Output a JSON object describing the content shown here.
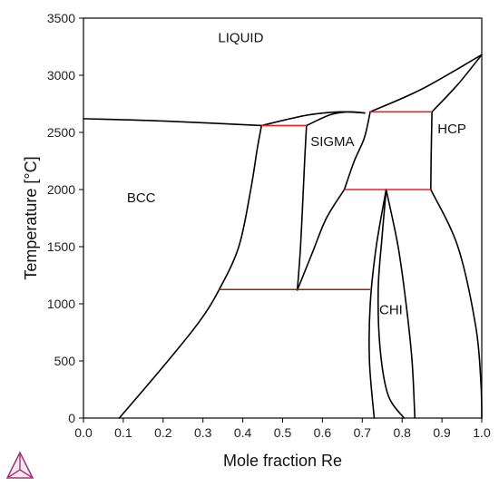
{
  "chart_data": {
    "type": "line",
    "title": "",
    "xlabel": "Mole fraction Re",
    "ylabel": "Temperature [°C]",
    "xlim": [
      0.0,
      1.0
    ],
    "ylim": [
      0,
      3500
    ],
    "xticks": [
      0.0,
      0.1,
      0.2,
      0.3,
      0.4,
      0.5,
      0.6,
      0.7,
      0.8,
      0.9,
      1.0
    ],
    "xtick_labels": [
      "0.0",
      "0.1",
      "0.2",
      "0.3",
      "0.4",
      "0.5",
      "0.6",
      "0.7",
      "0.8",
      "0.9",
      "1.0"
    ],
    "yticks": [
      0,
      500,
      1000,
      1500,
      2000,
      2500,
      3000,
      3500
    ],
    "ytick_labels": [
      "0",
      "500",
      "1000",
      "1500",
      "2000",
      "2500",
      "3000",
      "3500"
    ],
    "grid": false,
    "phase_labels": [
      {
        "text": "LIQUID",
        "x": 0.395,
        "y": 3330
      },
      {
        "text": "BCC",
        "x": 0.145,
        "y": 1930
      },
      {
        "text": "SIGMA",
        "x": 0.625,
        "y": 2420
      },
      {
        "text": "HCP",
        "x": 0.925,
        "y": 2530
      },
      {
        "text": "CHI",
        "x": 0.772,
        "y": 950
      }
    ],
    "boundaries": [
      {
        "name": "liquidus-left",
        "points": [
          [
            0.0,
            2620
          ],
          [
            0.2,
            2600
          ],
          [
            0.447,
            2560
          ]
        ]
      },
      {
        "name": "sigma-liquidus",
        "points": [
          [
            0.447,
            2560
          ],
          [
            0.56,
            2650
          ],
          [
            0.645,
            2680
          ],
          [
            0.706,
            2670
          ]
        ]
      },
      {
        "name": "sigma-left-top",
        "points": [
          [
            0.56,
            2560
          ],
          [
            0.62,
            2655
          ],
          [
            0.665,
            2680
          ],
          [
            0.706,
            2670
          ]
        ]
      },
      {
        "name": "liquidus-right",
        "points": [
          [
            0.72,
            2680
          ],
          [
            0.85,
            2880
          ],
          [
            1.0,
            3180
          ]
        ]
      },
      {
        "name": "hcp-solidus",
        "points": [
          [
            0.875,
            2680
          ],
          [
            0.94,
            2920
          ],
          [
            1.0,
            3180
          ]
        ]
      },
      {
        "name": "bcc-solvus",
        "points": [
          [
            0.09,
            0
          ],
          [
            0.2,
            450
          ],
          [
            0.29,
            840
          ],
          [
            0.34,
            1120
          ],
          [
            0.39,
            1500
          ],
          [
            0.42,
            2000
          ],
          [
            0.436,
            2350
          ],
          [
            0.447,
            2560
          ]
        ]
      },
      {
        "name": "sigma-bcc-boundary",
        "points": [
          [
            0.537,
            1120
          ],
          [
            0.545,
            1500
          ],
          [
            0.552,
            2000
          ],
          [
            0.556,
            2300
          ],
          [
            0.56,
            2560
          ]
        ]
      },
      {
        "name": "sigma-right-lower",
        "points": [
          [
            0.537,
            1120
          ],
          [
            0.575,
            1450
          ],
          [
            0.61,
            1750
          ],
          [
            0.655,
            2000
          ]
        ]
      },
      {
        "name": "sigma-hcp-boundary",
        "points": [
          [
            0.655,
            2000
          ],
          [
            0.68,
            2250
          ],
          [
            0.705,
            2450
          ],
          [
            0.72,
            2680
          ]
        ]
      },
      {
        "name": "hcp-left",
        "points": [
          [
            0.872,
            2000
          ],
          [
            0.873,
            2300
          ],
          [
            0.875,
            2680
          ]
        ]
      },
      {
        "name": "chi-left",
        "points": [
          [
            0.76,
            2000
          ],
          [
            0.735,
            1500
          ],
          [
            0.72,
            1000
          ],
          [
            0.718,
            500
          ],
          [
            0.73,
            0
          ]
        ]
      },
      {
        "name": "chi-right",
        "points": [
          [
            0.76,
            2000
          ],
          [
            0.79,
            1500
          ],
          [
            0.81,
            1000
          ],
          [
            0.825,
            500
          ],
          [
            0.832,
            0
          ]
        ]
      },
      {
        "name": "chi-inner",
        "points": [
          [
            0.76,
            2000
          ],
          [
            0.75,
            1600
          ],
          [
            0.74,
            1125
          ],
          [
            0.745,
            600
          ],
          [
            0.765,
            200
          ],
          [
            0.805,
            0
          ]
        ]
      },
      {
        "name": "hcp-solvus",
        "points": [
          [
            0.872,
            2000
          ],
          [
            0.94,
            1500
          ],
          [
            0.985,
            800
          ],
          [
            0.998,
            300
          ],
          [
            1.0,
            0
          ]
        ]
      }
    ],
    "tielines": [
      {
        "name": "peritectic-2560",
        "x": [
          0.447,
          0.56
        ],
        "y": 2560
      },
      {
        "name": "peritectic-2680",
        "x": [
          0.72,
          0.875
        ],
        "y": 2680
      },
      {
        "name": "chi-peritectic-2000",
        "x": [
          0.655,
          0.872
        ],
        "y": 2000
      },
      {
        "name": "eutectoid-1125",
        "x": [
          0.34,
          0.72
        ],
        "y": 1125
      }
    ],
    "colors": {
      "boundary": "#000000",
      "tieline": "#e8242a",
      "tieline_low": "#8a2a0a"
    }
  }
}
